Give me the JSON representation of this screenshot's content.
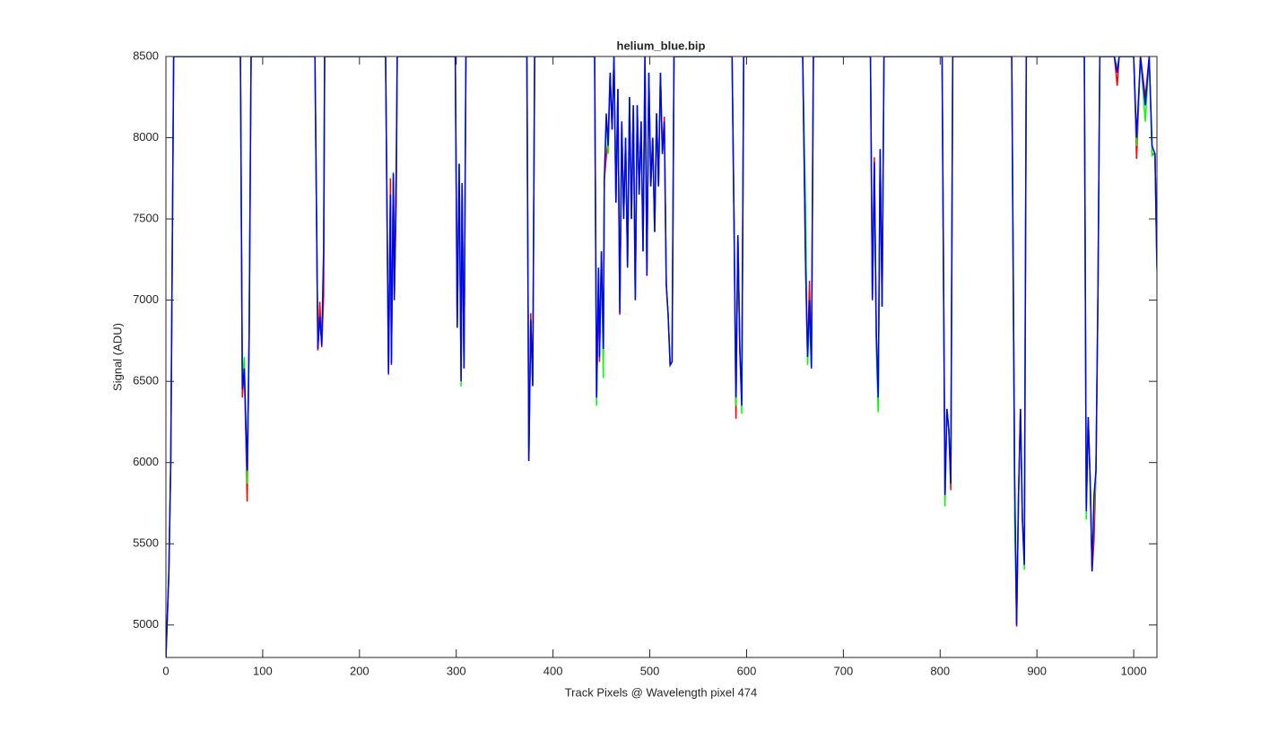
{
  "chart_data": {
    "type": "line",
    "title": "helium_blue.bip",
    "x_label": "Track Pixels @ Wavelength pixel 474",
    "y_label": "Signal (ADU)",
    "xlim": [
      0,
      1024
    ],
    "ylim": [
      4800,
      8500
    ],
    "xticks": [
      0,
      100,
      200,
      300,
      400,
      500,
      600,
      700,
      800,
      900,
      1000
    ],
    "yticks": [
      5000,
      5500,
      6000,
      6500,
      7000,
      7500,
      8000,
      8500
    ],
    "grid": false,
    "x": [
      0,
      3,
      5,
      8,
      77,
      79,
      81,
      84,
      86,
      88,
      154,
      157,
      159,
      161,
      163,
      164,
      227,
      230,
      232,
      233,
      235,
      236,
      238,
      239,
      299,
      301,
      303,
      305,
      306,
      308,
      310,
      373,
      375,
      377,
      379,
      381,
      443,
      445,
      447,
      448,
      450,
      452,
      453,
      455,
      457,
      459,
      461,
      463,
      465,
      467,
      469,
      471,
      473,
      475,
      477,
      479,
      481,
      483,
      485,
      487,
      489,
      491,
      493,
      495,
      497,
      499,
      501,
      503,
      505,
      507,
      509,
      511,
      513,
      515,
      517,
      519,
      521,
      523,
      525,
      585,
      587,
      589,
      591,
      593,
      595,
      597,
      658,
      661,
      663,
      665,
      667,
      669,
      728,
      730,
      732,
      734,
      736,
      738,
      740,
      742,
      802,
      805,
      807,
      809,
      811,
      813,
      874,
      877,
      879,
      881,
      883,
      885,
      887,
      889,
      949,
      951,
      953,
      955,
      957,
      959,
      961,
      963,
      965,
      980,
      983,
      985,
      1000,
      1003,
      1007,
      1012,
      1016,
      1019,
      1022,
      1024
    ],
    "series": [
      {
        "name": "red",
        "color": "#ff0000",
        "values": [
          4800,
          5300,
          6000,
          8500,
          8500,
          6400,
          6580,
          5760,
          6800,
          8500,
          8500,
          6690,
          6990,
          6710,
          7030,
          8500,
          8500,
          6540,
          7750,
          6600,
          7780,
          7000,
          7600,
          8500,
          8500,
          6830,
          7840,
          6520,
          7720,
          6580,
          8500,
          8500,
          6010,
          6920,
          6480,
          8500,
          8500,
          6380,
          7100,
          6620,
          7300,
          6640,
          7740,
          7880,
          8000,
          8400,
          8050,
          8500,
          7600,
          8300,
          6910,
          8100,
          7500,
          8000,
          7200,
          8250,
          7500,
          8200,
          7000,
          8200,
          7650,
          8100,
          7300,
          8500,
          7150,
          8400,
          7700,
          8000,
          7420,
          8150,
          7700,
          8400,
          7900,
          8130,
          7100,
          6900,
          6600,
          6620,
          8500,
          8500,
          7500,
          6270,
          7400,
          6690,
          6380,
          8500,
          8500,
          7200,
          6650,
          7120,
          6580,
          8500,
          8500,
          7000,
          7880,
          6800,
          6380,
          7930,
          6960,
          8500,
          8500,
          5780,
          6330,
          6200,
          5830,
          8500,
          8500,
          5850,
          4990,
          5800,
          6330,
          5650,
          5400,
          8500,
          8500,
          5720,
          6280,
          5900,
          5330,
          5520,
          5950,
          7000,
          8500,
          8500,
          8320,
          8500,
          8500,
          7870,
          8500,
          8250,
          8500,
          7900,
          7900,
          7230
        ]
      },
      {
        "name": "green",
        "color": "#00ff00",
        "values": [
          4800,
          5330,
          6000,
          8500,
          8500,
          6480,
          6650,
          5870,
          6700,
          8500,
          8500,
          6720,
          6880,
          6750,
          7330,
          8500,
          8500,
          6560,
          7600,
          6620,
          7790,
          7000,
          7790,
          8500,
          8500,
          6830,
          7840,
          6470,
          7720,
          6580,
          8500,
          8500,
          6010,
          6850,
          6480,
          8500,
          8500,
          6350,
          7190,
          6700,
          7300,
          6520,
          7740,
          8100,
          7900,
          8400,
          8050,
          8500,
          7600,
          8300,
          6950,
          8100,
          7500,
          8000,
          7200,
          8250,
          7500,
          8200,
          7000,
          8200,
          7650,
          8100,
          7300,
          8500,
          7200,
          8400,
          7700,
          8000,
          7420,
          8150,
          7700,
          8400,
          7900,
          8080,
          7100,
          6900,
          6600,
          6620,
          8500,
          8500,
          7500,
          6350,
          7400,
          6740,
          6300,
          8500,
          8500,
          7560,
          6600,
          6900,
          6580,
          8500,
          8500,
          7000,
          7800,
          6700,
          6310,
          7930,
          6960,
          8500,
          8500,
          5730,
          6330,
          6200,
          5900,
          8500,
          8500,
          5630,
          5050,
          5800,
          6330,
          5650,
          5340,
          8500,
          8500,
          5650,
          6280,
          5900,
          5350,
          5700,
          5950,
          7000,
          8500,
          8500,
          8430,
          8500,
          8500,
          7950,
          8500,
          8100,
          8500,
          7890,
          7900,
          7180
        ]
      },
      {
        "name": "blue",
        "color": "#0000ff",
        "values": [
          4800,
          5320,
          6000,
          8500,
          8500,
          6450,
          6580,
          5950,
          6780,
          8500,
          8500,
          6700,
          6900,
          6720,
          7300,
          8500,
          8500,
          6550,
          7650,
          6610,
          7780,
          7000,
          7800,
          8500,
          8500,
          6830,
          7840,
          6500,
          7720,
          6580,
          8500,
          8500,
          6010,
          6880,
          6470,
          8500,
          8500,
          6400,
          7200,
          6650,
          7300,
          6700,
          7740,
          8150,
          7950,
          8400,
          8050,
          8500,
          7600,
          8300,
          6920,
          8100,
          7500,
          8000,
          7200,
          8250,
          7500,
          8200,
          7000,
          8200,
          7650,
          8100,
          7300,
          8500,
          7150,
          8400,
          7700,
          8000,
          7420,
          8150,
          7700,
          8400,
          7900,
          8100,
          7100,
          6900,
          6600,
          6620,
          8500,
          8500,
          7500,
          6400,
          7400,
          6700,
          6350,
          8500,
          8500,
          7200,
          6650,
          7000,
          6580,
          8500,
          8500,
          7000,
          7850,
          6800,
          6400,
          7930,
          6960,
          8500,
          8500,
          5800,
          6330,
          6200,
          5870,
          8500,
          8500,
          5900,
          5000,
          5800,
          6330,
          5650,
          5370,
          8500,
          8500,
          5700,
          6280,
          5900,
          5330,
          5800,
          5950,
          7000,
          8500,
          8500,
          8400,
          8500,
          8500,
          8000,
          8500,
          8200,
          8500,
          7950,
          7900,
          7200
        ]
      }
    ]
  }
}
